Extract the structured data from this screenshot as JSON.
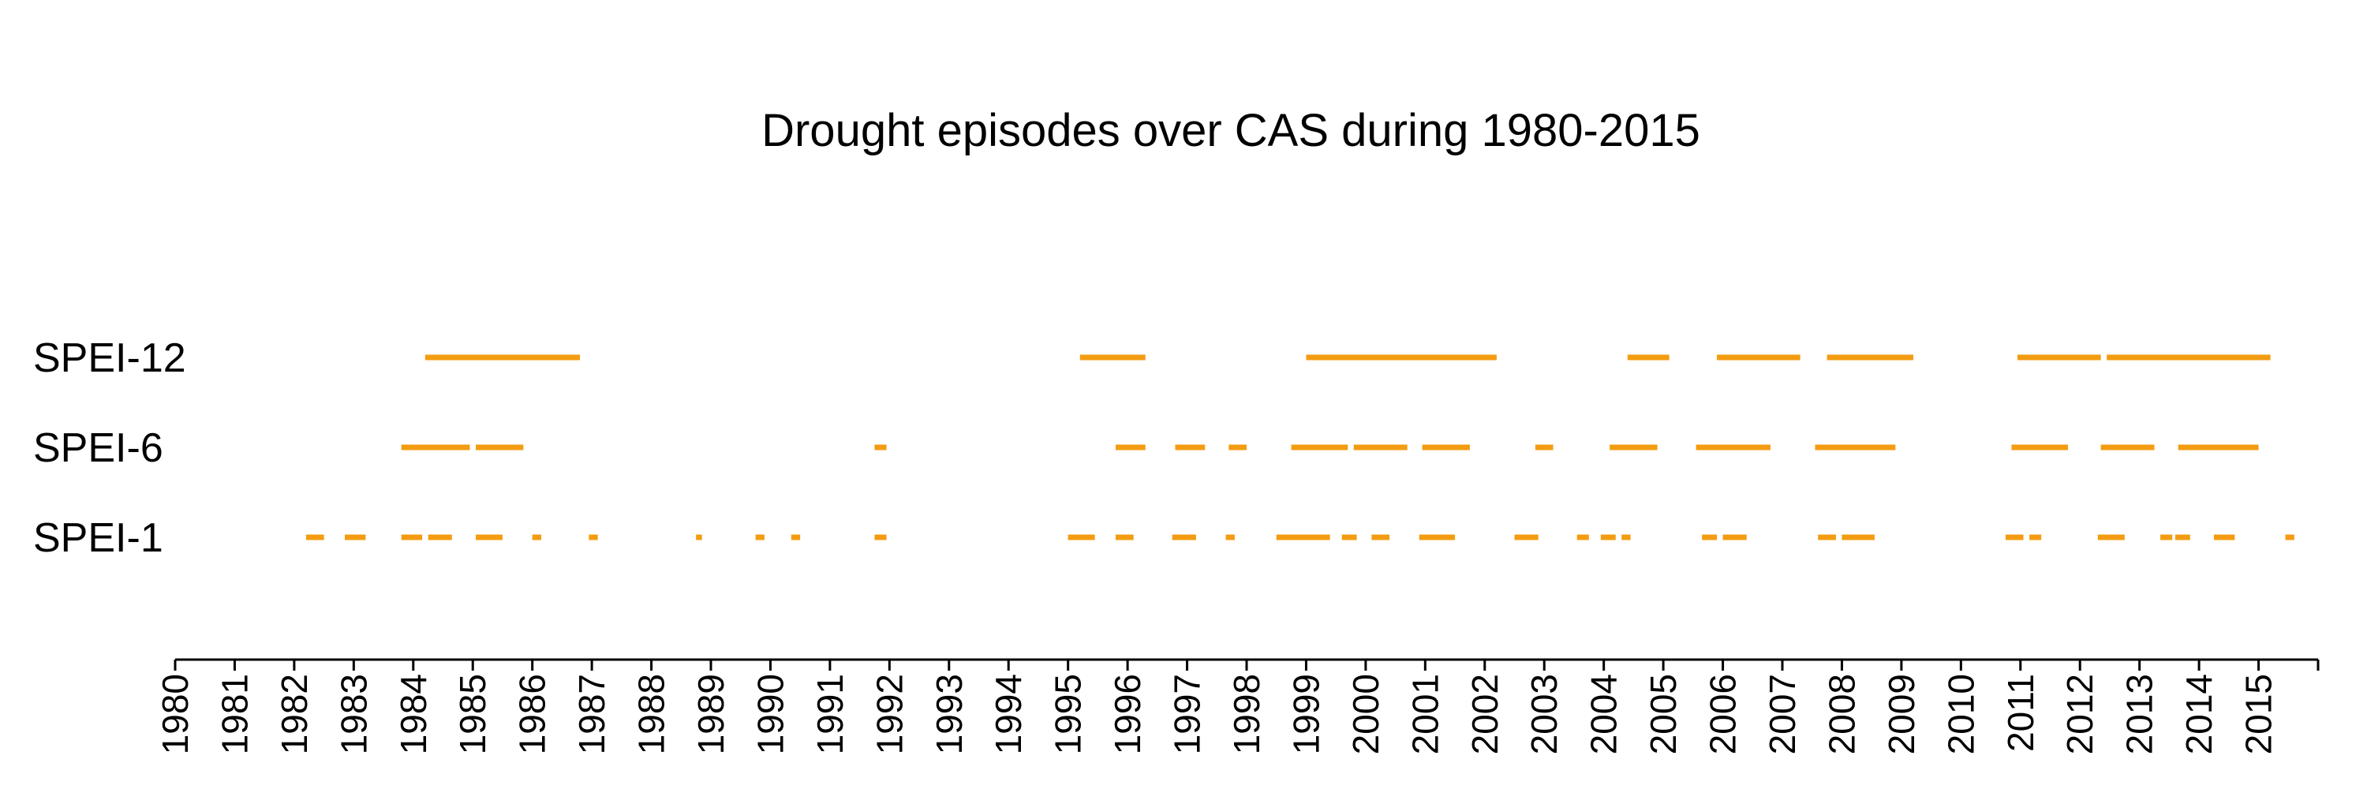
{
  "chart_data": {
    "type": "timeline",
    "title": "Drought episodes over CAS during 1980-2015",
    "xlabel": "",
    "ylabel": "",
    "x_ticks": [
      "1980",
      "1981",
      "1982",
      "1983",
      "1984",
      "1985",
      "1986",
      "1987",
      "1988",
      "1989",
      "1990",
      "1991",
      "1992",
      "1993",
      "1994",
      "1995",
      "1996",
      "1997",
      "1998",
      "1999",
      "2000",
      "2001",
      "2002",
      "2003",
      "2004",
      "2005",
      "2006",
      "2007",
      "2008",
      "2009",
      "2010",
      "2011",
      "2012",
      "2013",
      "2014",
      "2015"
    ],
    "xlim": [
      1980,
      2016
    ],
    "grid": false,
    "legend": "none",
    "color": "#F39C12",
    "series": [
      {
        "name": "SPEI-12",
        "episodes": [
          [
            1984.2,
            1986.8
          ],
          [
            1995.2,
            1996.3
          ],
          [
            1999.0,
            2002.2
          ],
          [
            2004.4,
            2005.1
          ],
          [
            2005.9,
            2007.3
          ],
          [
            2007.75,
            2009.2
          ],
          [
            2010.95,
            2012.35
          ],
          [
            2012.45,
            2015.2
          ]
        ]
      },
      {
        "name": "SPEI-6",
        "episodes": [
          [
            1983.8,
            1984.95
          ],
          [
            1985.05,
            1985.85
          ],
          [
            1991.75,
            1991.95
          ],
          [
            1995.8,
            1996.3
          ],
          [
            1996.8,
            1997.3
          ],
          [
            1997.7,
            1998.0
          ],
          [
            1998.75,
            1999.7
          ],
          [
            1999.8,
            2000.7
          ],
          [
            2000.95,
            2001.75
          ],
          [
            2002.85,
            2003.15
          ],
          [
            2004.1,
            2004.9
          ],
          [
            2005.55,
            2006.8
          ],
          [
            2007.55,
            2008.9
          ],
          [
            2010.85,
            2011.8
          ],
          [
            2012.35,
            2013.25
          ],
          [
            2013.65,
            2015.0
          ]
        ]
      },
      {
        "name": "SPEI-1",
        "episodes": [
          [
            1982.2,
            1982.5
          ],
          [
            1982.85,
            1983.2
          ],
          [
            1983.8,
            1984.15
          ],
          [
            1984.25,
            1984.65
          ],
          [
            1985.05,
            1985.5
          ],
          [
            1986.0,
            1986.15
          ],
          [
            1986.95,
            1987.1
          ],
          [
            1988.75,
            1988.85
          ],
          [
            1989.75,
            1989.9
          ],
          [
            1990.35,
            1990.5
          ],
          [
            1991.75,
            1991.95
          ],
          [
            1995.0,
            1995.45
          ],
          [
            1995.8,
            1996.1
          ],
          [
            1996.75,
            1997.15
          ],
          [
            1997.65,
            1997.8
          ],
          [
            1998.5,
            1999.4
          ],
          [
            1999.6,
            1999.85
          ],
          [
            2000.1,
            2000.4
          ],
          [
            2000.9,
            2001.5
          ],
          [
            2002.5,
            2002.9
          ],
          [
            2003.55,
            2003.75
          ],
          [
            2003.95,
            2004.2
          ],
          [
            2004.3,
            2004.45
          ],
          [
            2005.65,
            2005.9
          ],
          [
            2006.0,
            2006.4
          ],
          [
            2007.6,
            2007.9
          ],
          [
            2008.0,
            2008.55
          ],
          [
            2010.75,
            2011.05
          ],
          [
            2011.15,
            2011.35
          ],
          [
            2012.3,
            2012.75
          ],
          [
            2013.35,
            2013.55
          ],
          [
            2013.6,
            2013.85
          ],
          [
            2014.25,
            2014.6
          ],
          [
            2015.45,
            2015.6
          ]
        ]
      }
    ]
  }
}
